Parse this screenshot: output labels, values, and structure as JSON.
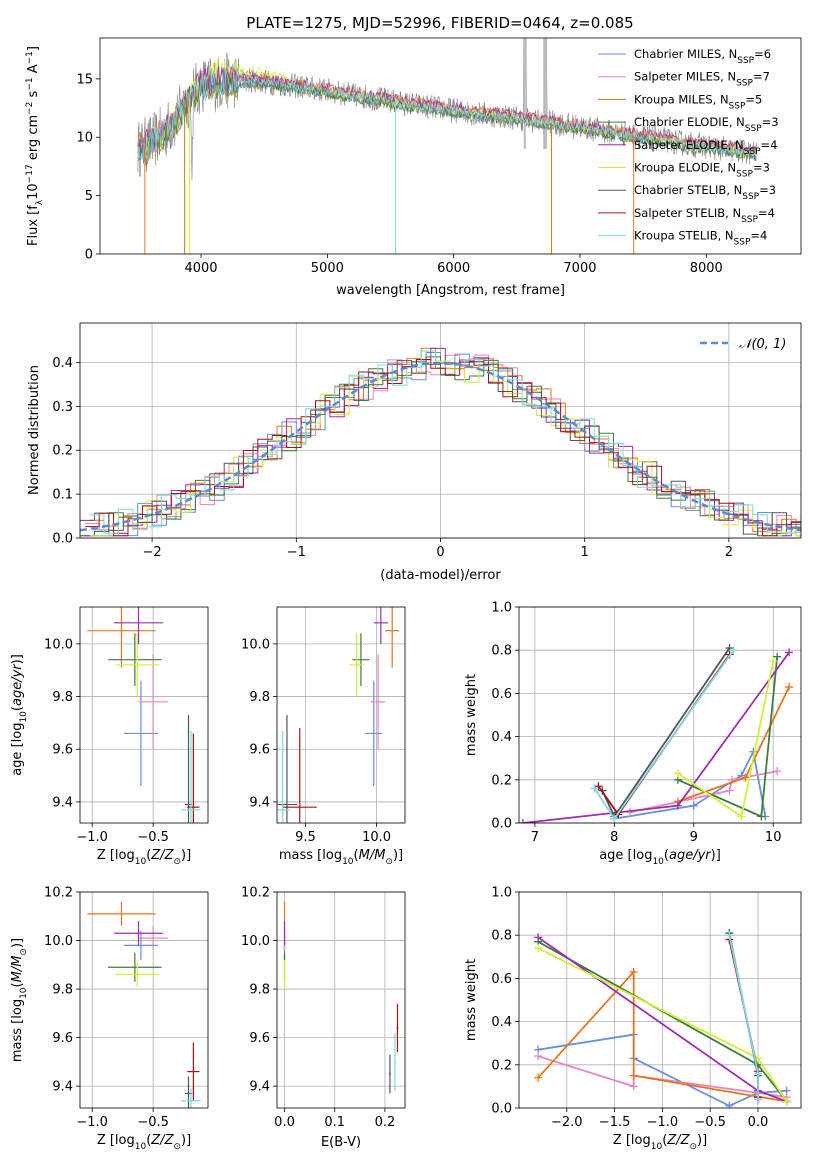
{
  "page_title": "PLATE=1275, MJD=52996, FIBERID=0464, z=0.085",
  "colors": {
    "Chabrier MILES": "#6a8fdc",
    "Salpeter MILES": "#e885bf",
    "Kroupa MILES": "#b8860b",
    "Chabrier ELODIE": "#3e7d3e",
    "Salpeter ELODIE": "#9b2fae",
    "Kroupa ELODIE": "#d4ec3a",
    "Chabrier STELIB": "#555555",
    "Salpeter STELIB": "#a31515",
    "Kroupa STELIB": "#7fd8e0",
    "orange": "#e6761e"
  },
  "chart_data": [
    {
      "id": "spectrum",
      "type": "line",
      "title": "PLATE=1275, MJD=52996, FIBERID=0464, z=0.085",
      "xlabel": "wavelength [Angstrom, rest frame]",
      "ylabel": "Flux [f_λ 10^-17 erg cm^-2 s^-1 A^-1]",
      "xlim": [
        3200,
        8750
      ],
      "ylim": [
        0,
        18.5
      ],
      "xticks": [
        4000,
        5000,
        6000,
        7000,
        8000
      ],
      "yticks": [
        0,
        5,
        10,
        15
      ],
      "grid": false,
      "legend_position": "top-right",
      "continuum": {
        "x": [
          3500,
          3600,
          3700,
          3800,
          3900,
          4000,
          4100,
          4200,
          4400,
          4600,
          4800,
          5000,
          5200,
          5400,
          5600,
          5800,
          6000,
          6200,
          6400,
          6600,
          6800,
          7000,
          7200,
          7400,
          7600,
          7800,
          8000,
          8200,
          8400
        ],
        "y": [
          9.0,
          9.5,
          10.3,
          11.5,
          13.2,
          14.5,
          14.6,
          14.8,
          14.9,
          14.6,
          14.3,
          14.0,
          13.6,
          13.3,
          12.9,
          12.6,
          12.3,
          12.0,
          11.8,
          11.5,
          11.2,
          10.9,
          10.5,
          10.2,
          9.9,
          9.5,
          9.2,
          8.9,
          8.6
        ]
      },
      "series": [
        {
          "name": "Chabrier MILES, N_SSP=6",
          "label_main": "Chabrier MILES, N",
          "label_sub": "SSP",
          "label_tail": "=6"
        },
        {
          "name": "Salpeter MILES, N_SSP=7",
          "label_main": "Salpeter MILES, N",
          "label_sub": "SSP",
          "label_tail": "=7"
        },
        {
          "name": "Kroupa MILES, N_SSP=5",
          "label_main": "Kroupa MILES, N",
          "label_sub": "SSP",
          "label_tail": "=5"
        },
        {
          "name": "Chabrier ELODIE, N_SSP=3",
          "label_main": "Chabrier ELODIE, N",
          "label_sub": "SSP",
          "label_tail": "=3"
        },
        {
          "name": "Salpeter ELODIE, N_SSP=4",
          "label_main": "Salpeter ELODIE, N",
          "label_sub": "SSP",
          "label_tail": "=4"
        },
        {
          "name": "Kroupa ELODIE, N_SSP=3",
          "label_main": "Kroupa ELODIE, N",
          "label_sub": "SSP",
          "label_tail": "=3"
        },
        {
          "name": "Chabrier STELIB, N_SSP=3",
          "label_main": "Chabrier STELIB, N",
          "label_sub": "SSP",
          "label_tail": "=3"
        },
        {
          "name": "Salpeter STELIB, N_SSP=4",
          "label_main": "Salpeter STELIB, N",
          "label_sub": "SSP",
          "label_tail": "=4"
        },
        {
          "name": "Kroupa STELIB, N_SSP=4",
          "label_main": "Kroupa STELIB, N",
          "label_sub": "SSP",
          "label_tail": "=4"
        }
      ]
    },
    {
      "id": "residuals",
      "type": "bar",
      "xlabel": "(data-model)/error",
      "ylabel": "Normed distribution",
      "xlim": [
        -2.5,
        2.5
      ],
      "ylim": [
        0,
        0.49
      ],
      "xticks": [
        -2,
        -1,
        0,
        1,
        2
      ],
      "yticks": [
        0.0,
        0.1,
        0.2,
        0.3,
        0.4
      ],
      "grid": true,
      "legend": "𝒩(0, 1)",
      "legend_position": "top-right"
    },
    {
      "id": "age_vs_Z",
      "type": "scatter",
      "xlabel": "Z [log10(Z/Z⊙)]",
      "ylabel": "age [log10(age/yr)]",
      "xlim": [
        -1.1,
        -0.05
      ],
      "ylim": [
        9.32,
        10.14
      ],
      "xticks": [
        -1.0,
        -0.5
      ],
      "yticks": [
        9.4,
        9.6,
        9.8,
        10.0
      ],
      "grid": true,
      "points": [
        {
          "model": "Chabrier MILES",
          "x": -0.6,
          "xerr": 0.14,
          "y": 9.66,
          "yerr": 0.2
        },
        {
          "model": "Salpeter MILES",
          "x": -0.5,
          "xerr": 0.12,
          "y": 9.78,
          "yerr": 0.18
        },
        {
          "model": "orange",
          "x": -0.76,
          "xerr": 0.28,
          "y": 10.05,
          "yerr": 0.14
        },
        {
          "model": "Chabrier ELODIE",
          "x": -0.65,
          "xerr": 0.22,
          "y": 9.94,
          "yerr": 0.1
        },
        {
          "model": "Salpeter ELODIE",
          "x": -0.62,
          "xerr": 0.2,
          "y": 10.08,
          "yerr": 0.08
        },
        {
          "model": "Kroupa ELODIE",
          "x": -0.63,
          "xerr": 0.18,
          "y": 9.92,
          "yerr": 0.12
        },
        {
          "model": "Chabrier STELIB",
          "x": -0.21,
          "xerr": 0.03,
          "y": 9.39,
          "yerr": 0.34
        },
        {
          "model": "Salpeter STELIB",
          "x": -0.17,
          "xerr": 0.05,
          "y": 9.38,
          "yerr": 0.28
        },
        {
          "model": "Kroupa STELIB",
          "x": -0.19,
          "xerr": 0.08,
          "y": 9.37,
          "yerr": 0.3
        }
      ]
    },
    {
      "id": "age_vs_mass",
      "type": "scatter",
      "xlabel": "mass [log10(M/M⊙)]",
      "ylabel": "",
      "xlim": [
        9.3,
        10.2
      ],
      "ylim": [
        9.32,
        10.14
      ],
      "xticks": [
        9.5,
        10.0
      ],
      "yticks": [
        9.4,
        9.6,
        9.8,
        10.0
      ],
      "grid": true,
      "points": [
        {
          "model": "Chabrier MILES",
          "x": 9.98,
          "xerr": 0.06,
          "y": 9.66,
          "yerr": 0.2
        },
        {
          "model": "Salpeter MILES",
          "x": 10.01,
          "xerr": 0.05,
          "y": 9.78,
          "yerr": 0.18
        },
        {
          "model": "orange",
          "x": 10.11,
          "xerr": 0.05,
          "y": 10.05,
          "yerr": 0.14
        },
        {
          "model": "Chabrier ELODIE",
          "x": 9.89,
          "xerr": 0.06,
          "y": 9.94,
          "yerr": 0.1
        },
        {
          "model": "Salpeter ELODIE",
          "x": 10.03,
          "xerr": 0.05,
          "y": 10.08,
          "yerr": 0.08
        },
        {
          "model": "Kroupa ELODIE",
          "x": 9.86,
          "xerr": 0.05,
          "y": 9.92,
          "yerr": 0.12
        },
        {
          "model": "Chabrier STELIB",
          "x": 9.37,
          "xerr": 0.07,
          "y": 9.39,
          "yerr": 0.34
        },
        {
          "model": "Salpeter STELIB",
          "x": 9.46,
          "xerr": 0.12,
          "y": 9.38,
          "yerr": 0.3
        },
        {
          "model": "Kroupa STELIB",
          "x": 9.34,
          "xerr": 0.05,
          "y": 9.37,
          "yerr": 0.3
        }
      ]
    },
    {
      "id": "weight_vs_age",
      "type": "line",
      "xlabel": "age [log10(age/yr)]",
      "ylabel": "mass weight",
      "xlim": [
        6.8,
        10.35
      ],
      "ylim": [
        0,
        1.0
      ],
      "xticks": [
        7,
        8,
        9,
        10
      ],
      "yticks": [
        0.0,
        0.2,
        0.4,
        0.6,
        0.8,
        1.0
      ],
      "grid": true,
      "series": [
        {
          "model": "Chabrier MILES",
          "x": [
            8.0,
            9.0,
            9.6,
            9.75,
            9.9
          ],
          "y": [
            0.02,
            0.08,
            0.22,
            0.33,
            0.03
          ]
        },
        {
          "model": "Salpeter MILES",
          "x": [
            8.2,
            9.45,
            9.48,
            10.05
          ],
          "y": [
            0.05,
            0.15,
            0.2,
            0.24
          ]
        },
        {
          "model": "orange",
          "x": [
            8.8,
            9.65,
            10.2
          ],
          "y": [
            0.1,
            0.21,
            0.63
          ]
        },
        {
          "model": "Chabrier ELODIE",
          "x": [
            8.8,
            9.85,
            10.05
          ],
          "y": [
            0.2,
            0.03,
            0.77
          ]
        },
        {
          "model": "Salpeter ELODIE",
          "x": [
            6.85,
            8.8,
            10.2
          ],
          "y": [
            0.0,
            0.08,
            0.79
          ]
        },
        {
          "model": "Kroupa ELODIE",
          "x": [
            8.8,
            9.6,
            10.0
          ],
          "y": [
            0.23,
            0.03,
            0.75
          ]
        },
        {
          "model": "Chabrier STELIB",
          "x": [
            7.85,
            8.0,
            9.45
          ],
          "y": [
            0.15,
            0.03,
            0.81
          ]
        },
        {
          "model": "Salpeter STELIB",
          "x": [
            7.8,
            8.05,
            9.45
          ],
          "y": [
            0.17,
            0.04,
            0.78
          ]
        },
        {
          "model": "Kroupa STELIB",
          "x": [
            7.75,
            8.0,
            9.5
          ],
          "y": [
            0.16,
            0.02,
            0.8
          ]
        }
      ]
    },
    {
      "id": "mass_vs_Z",
      "type": "scatter",
      "xlabel": "Z [log10(Z/Z⊙)]",
      "ylabel": "mass [log10(M/M⊙)]",
      "xlim": [
        -1.1,
        -0.05
      ],
      "ylim": [
        9.31,
        10.2
      ],
      "xticks": [
        -1.0,
        -0.5
      ],
      "yticks": [
        9.4,
        9.6,
        9.8,
        10.0,
        10.2
      ],
      "grid": true,
      "points": [
        {
          "model": "Chabrier MILES",
          "x": -0.6,
          "xerr": 0.14,
          "y": 9.98,
          "yerr": 0.06
        },
        {
          "model": "Salpeter MILES",
          "x": -0.5,
          "xerr": 0.12,
          "y": 10.01,
          "yerr": 0.05
        },
        {
          "model": "orange",
          "x": -0.76,
          "xerr": 0.28,
          "y": 10.11,
          "yerr": 0.05
        },
        {
          "model": "Chabrier ELODIE",
          "x": -0.65,
          "xerr": 0.22,
          "y": 9.89,
          "yerr": 0.06
        },
        {
          "model": "Salpeter ELODIE",
          "x": -0.62,
          "xerr": 0.2,
          "y": 10.03,
          "yerr": 0.05
        },
        {
          "model": "Kroupa ELODIE",
          "x": -0.63,
          "xerr": 0.18,
          "y": 9.86,
          "yerr": 0.05
        },
        {
          "model": "Chabrier STELIB",
          "x": -0.21,
          "xerr": 0.03,
          "y": 9.37,
          "yerr": 0.07
        },
        {
          "model": "Salpeter STELIB",
          "x": -0.17,
          "xerr": 0.05,
          "y": 9.46,
          "yerr": 0.12
        },
        {
          "model": "Kroupa STELIB",
          "x": -0.19,
          "xerr": 0.08,
          "y": 9.34,
          "yerr": 0.05
        }
      ]
    },
    {
      "id": "mass_vs_ebv",
      "type": "scatter",
      "xlabel": "E(B-V)",
      "ylabel": "",
      "xlim": [
        -0.015,
        0.24
      ],
      "ylim": [
        9.31,
        10.2
      ],
      "xticks": [
        0.0,
        0.1,
        0.2
      ],
      "yticks": [
        9.4,
        9.6,
        9.8,
        10.0,
        10.2
      ],
      "grid": true,
      "points": [
        {
          "model": "Chabrier MILES",
          "x": 0.0,
          "xerr": 0.001,
          "y": 9.98,
          "yerr": 0.06
        },
        {
          "model": "Salpeter MILES",
          "x": 0.0,
          "xerr": 0.001,
          "y": 10.01,
          "yerr": 0.05
        },
        {
          "model": "orange",
          "x": 0.0,
          "xerr": 0.001,
          "y": 10.11,
          "yerr": 0.05
        },
        {
          "model": "Chabrier ELODIE",
          "x": 0.0,
          "xerr": 0.001,
          "y": 9.89,
          "yerr": 0.06
        },
        {
          "model": "Salpeter ELODIE",
          "x": 0.0,
          "xerr": 0.001,
          "y": 10.03,
          "yerr": 0.05
        },
        {
          "model": "Kroupa ELODIE",
          "x": 0.0,
          "xerr": 0.001,
          "y": 9.86,
          "yerr": 0.06
        },
        {
          "model": "Chabrier STELIB",
          "x": 0.21,
          "xerr": 0.002,
          "y": 9.45,
          "yerr": 0.08
        },
        {
          "model": "Salpeter STELIB",
          "x": 0.225,
          "xerr": 0.002,
          "y": 9.64,
          "yerr": 0.1
        },
        {
          "model": "Kroupa STELIB",
          "x": 0.22,
          "xerr": 0.002,
          "y": 9.5,
          "yerr": 0.12
        }
      ]
    },
    {
      "id": "weight_vs_Z",
      "type": "line",
      "xlabel": "Z [log10(Z/Z⊙)]",
      "ylabel": "mass weight",
      "xlim": [
        -2.5,
        0.45
      ],
      "ylim": [
        0,
        1.0
      ],
      "xticks": [
        -2.0,
        -1.5,
        -1.0,
        -0.5,
        0.0
      ],
      "yticks": [
        0.0,
        0.2,
        0.4,
        0.6,
        0.8,
        1.0
      ],
      "grid": true,
      "series": [
        {
          "model": "Chabrier MILES",
          "x": [
            -2.3,
            -1.3,
            -1.3,
            -0.3,
            0.0,
            0.3
          ],
          "y": [
            0.27,
            0.34,
            0.23,
            0.01,
            0.07,
            0.08
          ]
        },
        {
          "model": "Salpeter MILES",
          "x": [
            -2.3,
            -1.3,
            -1.3,
            0.0,
            0.3
          ],
          "y": [
            0.24,
            0.1,
            0.15,
            0.07,
            0.05
          ]
        },
        {
          "model": "orange",
          "x": [
            -2.3,
            -1.3,
            -1.3,
            0.3
          ],
          "y": [
            0.14,
            0.63,
            0.15,
            0.03
          ]
        },
        {
          "model": "Chabrier ELODIE",
          "x": [
            -2.3,
            0.0,
            0.3
          ],
          "y": [
            0.77,
            0.2,
            0.03
          ]
        },
        {
          "model": "Salpeter ELODIE",
          "x": [
            -2.3,
            0.0,
            0.3
          ],
          "y": [
            0.79,
            0.08,
            0.03
          ]
        },
        {
          "model": "Kroupa ELODIE",
          "x": [
            -2.3,
            0.0,
            0.3
          ],
          "y": [
            0.74,
            0.23,
            0.03
          ]
        },
        {
          "model": "Chabrier STELIB",
          "x": [
            -0.3,
            0.0,
            0.0
          ],
          "y": [
            0.81,
            0.15,
            0.04
          ]
        },
        {
          "model": "Salpeter STELIB",
          "x": [
            -0.3,
            0.0,
            0.0
          ],
          "y": [
            0.78,
            0.17,
            0.05
          ]
        },
        {
          "model": "Kroupa STELIB",
          "x": [
            -0.3,
            0.0,
            0.0
          ],
          "y": [
            0.8,
            0.16,
            0.04
          ]
        }
      ]
    }
  ]
}
